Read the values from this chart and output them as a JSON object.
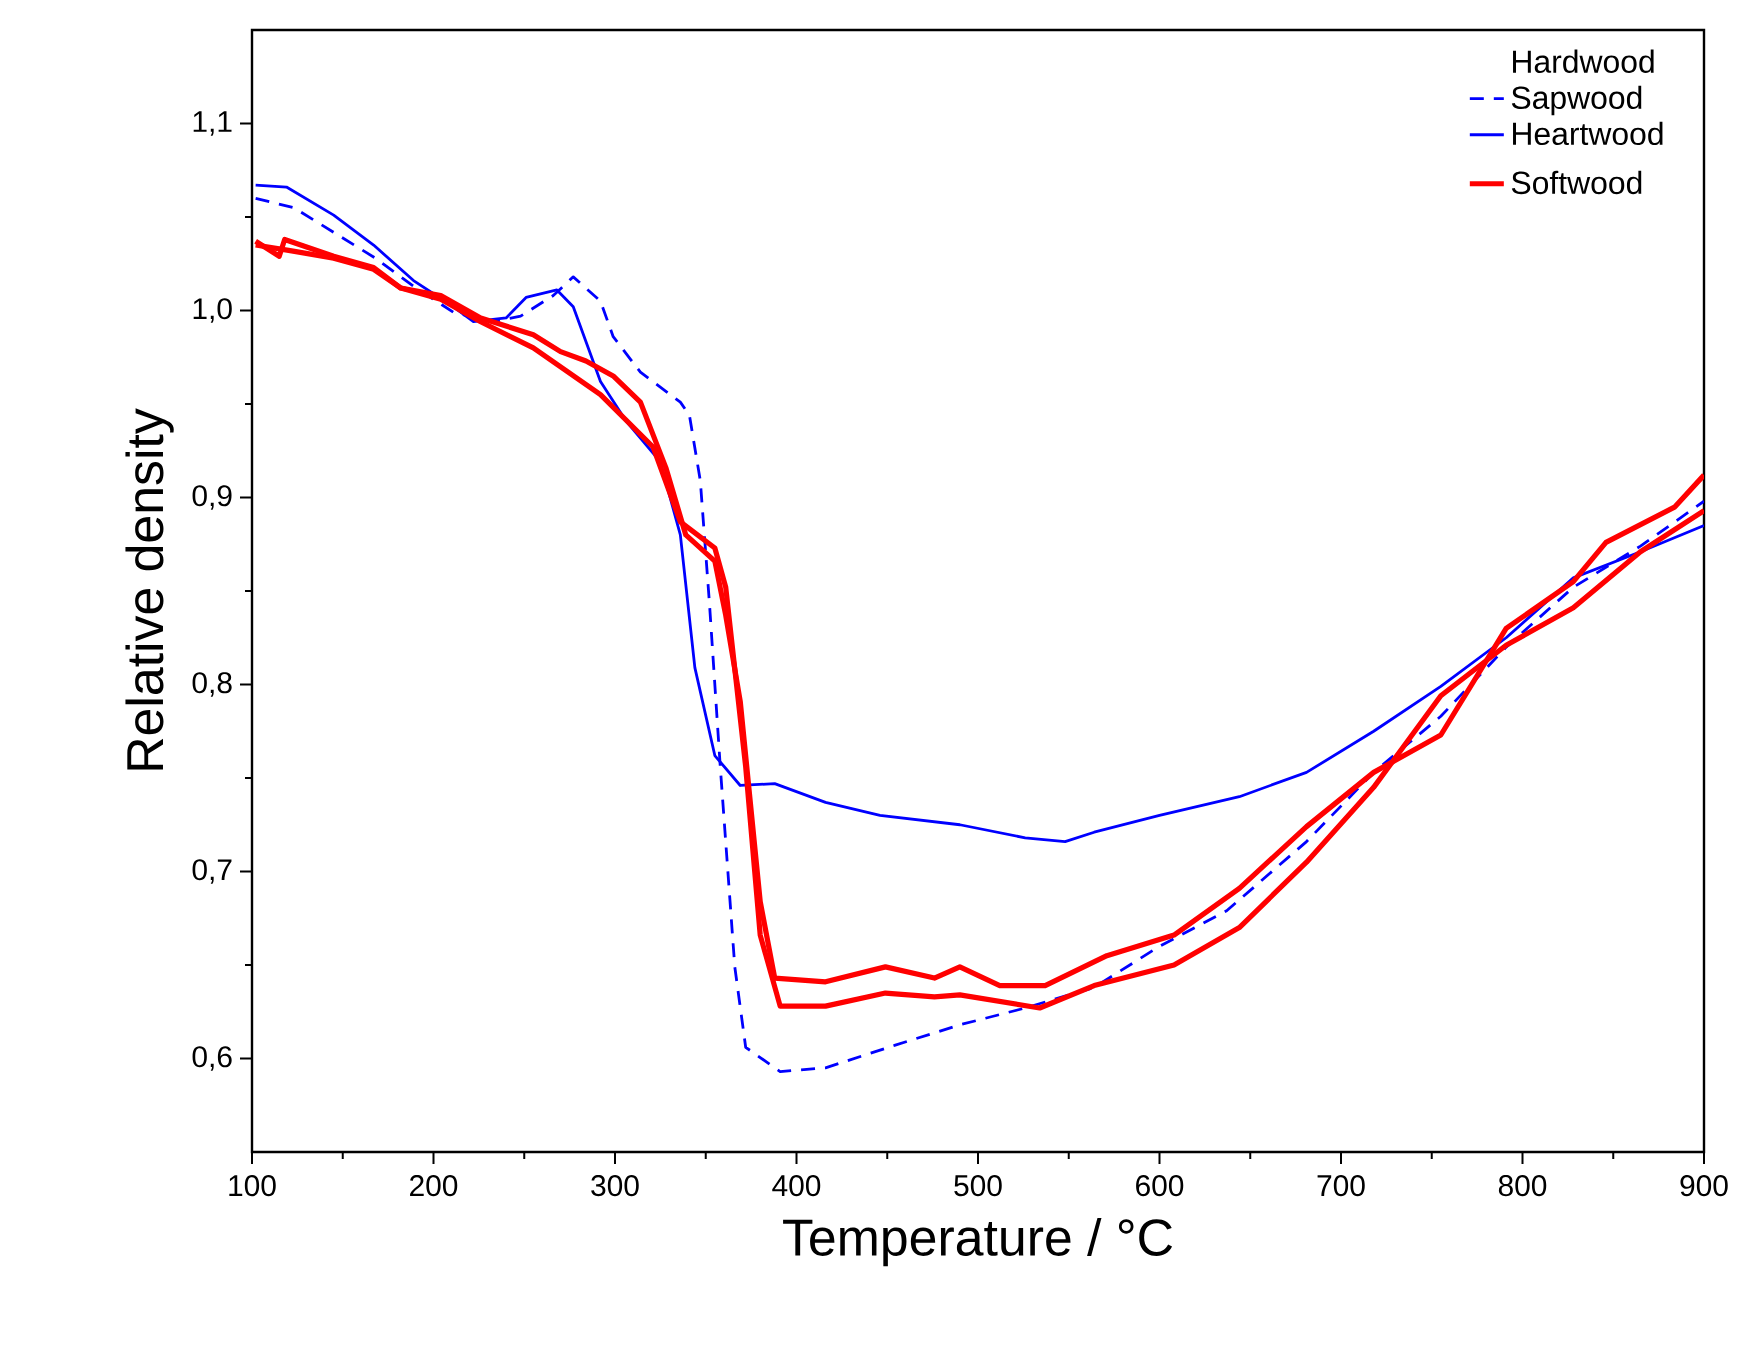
{
  "chart_data": {
    "type": "line",
    "xlabel": "Temperature / °C",
    "ylabel": "Relative density",
    "legend_title": "Hardwood",
    "legend": "top right",
    "grid": false,
    "xlim": [
      100,
      900
    ],
    "xticks": [
      100,
      200,
      300,
      400,
      500,
      600,
      700,
      800,
      900
    ],
    "ylim": [
      0.55,
      1.15
    ],
    "yticks": [
      {
        "value": 0.6,
        "label": "0,6"
      },
      {
        "value": 0.7,
        "label": "0,7"
      },
      {
        "value": 0.8,
        "label": "0,8"
      },
      {
        "value": 0.9,
        "label": "0,9"
      },
      {
        "value": 1.0,
        "label": "1,0"
      },
      {
        "value": 1.1,
        "label": "1,1"
      }
    ],
    "series": [
      {
        "name": "Sapwood",
        "color": "#0000ff",
        "line_style": "dashed",
        "x": [
          102,
          123,
          148,
          168,
          189,
          211,
          233,
          248,
          266,
          277,
          292,
          299,
          314,
          336,
          341,
          347,
          352,
          358,
          366,
          372,
          391,
          416,
          454,
          490,
          526,
          564,
          600,
          637,
          681,
          718,
          755,
          791,
          828,
          865,
          900
        ],
        "values": [
          1.06,
          1.055,
          1.04,
          1.028,
          1.013,
          0.999,
          0.994,
          0.997,
          1.008,
          1.018,
          1.005,
          0.986,
          0.967,
          0.951,
          0.944,
          0.909,
          0.844,
          0.756,
          0.649,
          0.606,
          0.593,
          0.595,
          0.607,
          0.618,
          0.627,
          0.638,
          0.66,
          0.679,
          0.716,
          0.753,
          0.783,
          0.82,
          0.852,
          0.874,
          0.898
        ]
      },
      {
        "name": "Heartwood",
        "color": "#0000ff",
        "line_style": "solid",
        "x": [
          102,
          119,
          145,
          167,
          189,
          211,
          222,
          240,
          251,
          268,
          277,
          292,
          306,
          325,
          336,
          344,
          355,
          369,
          388,
          416,
          446,
          490,
          526,
          548,
          564,
          600,
          644,
          681,
          718,
          755,
          791,
          828,
          865,
          900
        ],
        "values": [
          1.067,
          1.066,
          1.051,
          1.035,
          1.016,
          1.002,
          0.994,
          0.996,
          1.007,
          1.011,
          1.002,
          0.962,
          0.941,
          0.919,
          0.88,
          0.809,
          0.762,
          0.746,
          0.747,
          0.737,
          0.73,
          0.725,
          0.718,
          0.716,
          0.721,
          0.73,
          0.74,
          0.753,
          0.775,
          0.799,
          0.825,
          0.857,
          0.871,
          0.885
        ]
      },
      {
        "name": "Softwood",
        "color": "#ff0000",
        "line_style": "solid",
        "x": [
          102,
          115,
          118,
          145,
          167,
          182,
          204,
          226,
          255,
          270,
          284,
          299,
          314,
          328,
          339,
          355,
          361,
          369,
          380,
          388,
          416,
          449,
          476,
          490,
          512,
          537,
          571,
          608,
          644,
          681,
          718,
          755,
          791,
          828,
          846,
          884,
          900
        ],
        "values": [
          1.037,
          1.029,
          1.038,
          1.029,
          1.023,
          1.012,
          1.008,
          0.996,
          0.987,
          0.978,
          0.973,
          0.965,
          0.951,
          0.916,
          0.88,
          0.866,
          0.837,
          0.791,
          0.684,
          0.643,
          0.641,
          0.649,
          0.643,
          0.649,
          0.639,
          0.639,
          0.655,
          0.666,
          0.691,
          0.724,
          0.753,
          0.773,
          0.83,
          0.855,
          0.876,
          0.895,
          0.912
        ]
      },
      {
        "color": "#ff0000",
        "line_style": "solid",
        "x": [
          102,
          121,
          145,
          167,
          182,
          204,
          226,
          255,
          292,
          321,
          336,
          355,
          361,
          372,
          380,
          391,
          416,
          449,
          476,
          490,
          534,
          564,
          608,
          644,
          681,
          718,
          755,
          791,
          828,
          865,
          900
        ],
        "values": [
          1.035,
          1.032,
          1.028,
          1.022,
          1.012,
          1.006,
          0.994,
          0.98,
          0.955,
          0.927,
          0.887,
          0.873,
          0.852,
          0.756,
          0.666,
          0.628,
          0.628,
          0.635,
          0.633,
          0.634,
          0.627,
          0.639,
          0.65,
          0.67,
          0.705,
          0.745,
          0.794,
          0.821,
          0.841,
          0.871,
          0.893
        ]
      }
    ]
  }
}
